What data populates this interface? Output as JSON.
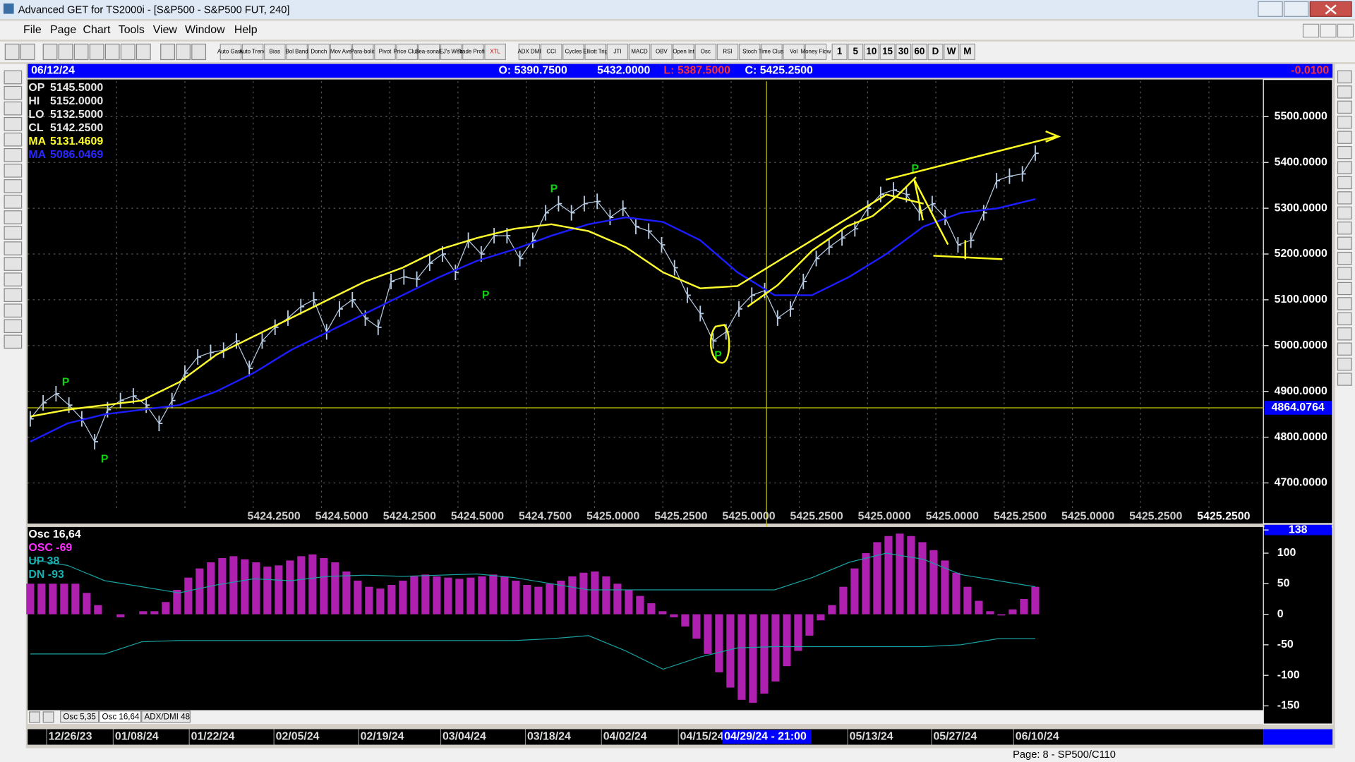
{
  "window": {
    "title": "Advanced GET for TS2000i - [S&P500 - S&P500 FUT, 240]",
    "menu": [
      "File",
      "Page",
      "Chart",
      "Tools",
      "View",
      "Window",
      "Help"
    ]
  },
  "toolbar": [
    "Auto Gann",
    "Auto Trend",
    "Bias",
    "Bol Band",
    "Donch",
    "Mov Ave",
    "Para-bolic",
    "Pivot",
    "Price Clust",
    "Sea-sonals",
    "EJ's Web",
    "Trade Profile",
    "XTL",
    "ADX DMI",
    "CCI",
    "Cycles",
    "Elliott Trig",
    "JTI",
    "MACD",
    "OBV",
    "Open Int",
    "Osc",
    "RSI",
    "Stoch",
    "Time Clust",
    "Vol",
    "Money Flow"
  ],
  "intervals": [
    "1",
    "5",
    "10",
    "15",
    "30",
    "60",
    "D",
    "W",
    "M"
  ],
  "chart_header": {
    "date": "06/12/24",
    "open": "O: 5390.7500",
    "high": "5432.0000",
    "low": "L: 5387.5000",
    "close": "C: 5425.2500",
    "change": "-0.0100"
  },
  "info": [
    {
      "label": "OP",
      "value": "5145.5000"
    },
    {
      "label": "HI",
      "value": "5152.0000"
    },
    {
      "label": "LO",
      "value": "5132.5000"
    },
    {
      "label": "CL",
      "value": "5142.2500"
    },
    {
      "label": "MA",
      "value": "5131.4609"
    },
    {
      "label": "MA",
      "value": "5086.0469"
    }
  ],
  "price_axis": {
    "ylim": [
      4641.5,
      5577.4
    ],
    "yticks": [
      {
        "value": 4700,
        "label": "4700.0000"
      },
      {
        "value": 4800,
        "label": "4800.0000"
      },
      {
        "value": 4900,
        "label": "4900.0000"
      },
      {
        "value": 5000,
        "label": "5000.0000"
      },
      {
        "value": 5100,
        "label": "5100.0000"
      },
      {
        "value": 5200,
        "label": "5200.0000"
      },
      {
        "value": 5300,
        "label": "5300.0000"
      },
      {
        "value": 5400,
        "label": "5400.0000"
      },
      {
        "value": 5500,
        "label": "5500.0000"
      }
    ],
    "cursor": 4864.0764
  },
  "bottom_values": [
    "5424.2500",
    "5424.5000",
    "5424.2500",
    "5424.5000",
    "5424.7500",
    "5425.0000",
    "5425.2500",
    "5425.0000",
    "5425.2500",
    "5425.0000",
    "5425.0000",
    "5425.2500",
    "5425.0000",
    "5425.2500"
  ],
  "last_value": "5425.2500",
  "price": {
    "closes": [
      4840,
      4875,
      4895,
      4870,
      4840,
      4790,
      4860,
      4880,
      4890,
      4870,
      4830,
      4880,
      4940,
      4975,
      4985,
      4990,
      5010,
      4950,
      5010,
      5040,
      5060,
      5085,
      5100,
      5030,
      5080,
      5100,
      5060,
      5040,
      5140,
      5150,
      5145,
      5180,
      5200,
      5160,
      5230,
      5200,
      5240,
      5240,
      5190,
      5230,
      5290,
      5310,
      5290,
      5310,
      5315,
      5280,
      5300,
      5260,
      5250,
      5220,
      5170,
      5110,
      5070,
      5010,
      5030,
      5080,
      5110,
      5120,
      5060,
      5080,
      5140,
      5190,
      5215,
      5235,
      5255,
      5300,
      5330,
      5340,
      5330,
      5290,
      5310,
      5280,
      5220,
      5230,
      5290,
      5360,
      5370,
      5375,
      5420
    ],
    "ma_yellow": [
      4845,
      4860,
      4870,
      4880,
      4920,
      4980,
      5020,
      5060,
      5100,
      5140,
      5170,
      5210,
      5235,
      5255,
      5265,
      5250,
      5215,
      5160,
      5125,
      5130,
      5180,
      5230,
      5280,
      5330,
      5310,
      null,
      null,
      null
    ],
    "ma_blue": [
      4790,
      4830,
      4850,
      4860,
      4870,
      4900,
      4940,
      4990,
      5030,
      5070,
      5110,
      5150,
      5185,
      5210,
      5240,
      5265,
      5280,
      5270,
      5230,
      5160,
      5110,
      5110,
      5150,
      5200,
      5260,
      5290,
      5300,
      5320
    ]
  },
  "pivots": [
    "P",
    "P",
    "P",
    "P",
    "P",
    "P"
  ],
  "oscillator": {
    "title": "Osc 16,64",
    "osc": "OSC -69",
    "up": "UP   38",
    "dn": "DN   -93",
    "ylim": [
      -157,
      140
    ],
    "yticks": [
      -150,
      -100,
      -50,
      0,
      50,
      100,
      138
    ],
    "values": [
      50,
      50,
      50,
      50,
      50,
      35,
      15,
      0,
      -5,
      0,
      5,
      5,
      20,
      40,
      60,
      75,
      85,
      92,
      95,
      90,
      85,
      78,
      80,
      88,
      95,
      98,
      92,
      85,
      70,
      55,
      45,
      42,
      48,
      55,
      62,
      65,
      62,
      60,
      58,
      60,
      62,
      65,
      62,
      55,
      48,
      45,
      50,
      55,
      62,
      68,
      70,
      62,
      50,
      40,
      30,
      18,
      5,
      -5,
      -20,
      -40,
      -65,
      -95,
      -120,
      -140,
      -145,
      -130,
      -110,
      -85,
      -60,
      -35,
      -10,
      15,
      45,
      75,
      100,
      118,
      128,
      132,
      128,
      118,
      105,
      88,
      68,
      45,
      22,
      5,
      -2,
      8,
      25,
      45
    ],
    "up_line": [
      90,
      80,
      55,
      45,
      35,
      48,
      58,
      55,
      62,
      64,
      62,
      64,
      66,
      60,
      50,
      40,
      40,
      40,
      40,
      40,
      40,
      60,
      85,
      100,
      90,
      65,
      55,
      45
    ],
    "dn_line": [
      -65,
      -65,
      -65,
      -45,
      -43,
      -43,
      -43,
      -43,
      -43,
      -43,
      -43,
      -43,
      -43,
      -43,
      -40,
      -35,
      -60,
      -90,
      -70,
      -55,
      -53,
      -53,
      -53,
      -53,
      -53,
      -50,
      -40,
      -40
    ]
  },
  "tabs": [
    "Osc 5,35",
    "Osc 16,64",
    "ADX/DMI 48"
  ],
  "dates": [
    "12/26/23",
    "01/08/24",
    "01/22/24",
    "02/05/24",
    "02/19/24",
    "03/04/24",
    "03/18/24",
    "04/02/24",
    "04/15/24",
    "05/13/24",
    "05/27/24",
    "06/10/24"
  ],
  "cursor_date": "04/29/24 - 21:00",
  "status": "Page: 8 - SP500/C110"
}
